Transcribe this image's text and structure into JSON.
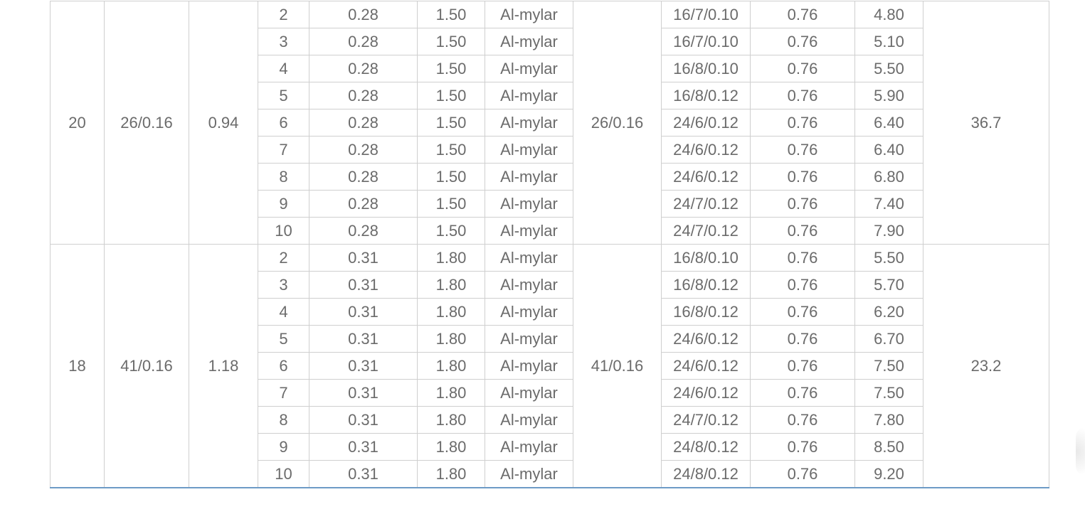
{
  "groups": [
    {
      "awg": "20",
      "conductor": "26/0.16",
      "od": "0.94",
      "drain": "26/0.16",
      "resistance": "36.7",
      "rows": [
        {
          "pairs": "2",
          "ins": "0.28",
          "dia": "1.50",
          "shield": "Al-mylar",
          "strand": "16/7/0.10",
          "jacket": "0.76",
          "outer": "4.80"
        },
        {
          "pairs": "3",
          "ins": "0.28",
          "dia": "1.50",
          "shield": "Al-mylar",
          "strand": "16/7/0.10",
          "jacket": "0.76",
          "outer": "5.10"
        },
        {
          "pairs": "4",
          "ins": "0.28",
          "dia": "1.50",
          "shield": "Al-mylar",
          "strand": "16/8/0.10",
          "jacket": "0.76",
          "outer": "5.50"
        },
        {
          "pairs": "5",
          "ins": "0.28",
          "dia": "1.50",
          "shield": "Al-mylar",
          "strand": "16/8/0.12",
          "jacket": "0.76",
          "outer": "5.90"
        },
        {
          "pairs": "6",
          "ins": "0.28",
          "dia": "1.50",
          "shield": "Al-mylar",
          "strand": "24/6/0.12",
          "jacket": "0.76",
          "outer": "6.40"
        },
        {
          "pairs": "7",
          "ins": "0.28",
          "dia": "1.50",
          "shield": "Al-mylar",
          "strand": "24/6/0.12",
          "jacket": "0.76",
          "outer": "6.40"
        },
        {
          "pairs": "8",
          "ins": "0.28",
          "dia": "1.50",
          "shield": "Al-mylar",
          "strand": "24/6/0.12",
          "jacket": "0.76",
          "outer": "6.80"
        },
        {
          "pairs": "9",
          "ins": "0.28",
          "dia": "1.50",
          "shield": "Al-mylar",
          "strand": "24/7/0.12",
          "jacket": "0.76",
          "outer": "7.40"
        },
        {
          "pairs": "10",
          "ins": "0.28",
          "dia": "1.50",
          "shield": "Al-mylar",
          "strand": "24/7/0.12",
          "jacket": "0.76",
          "outer": "7.90"
        }
      ]
    },
    {
      "awg": "18",
      "conductor": "41/0.16",
      "od": "1.18",
      "drain": "41/0.16",
      "resistance": "23.2",
      "rows": [
        {
          "pairs": "2",
          "ins": "0.31",
          "dia": "1.80",
          "shield": "Al-mylar",
          "strand": "16/8/0.10",
          "jacket": "0.76",
          "outer": "5.50"
        },
        {
          "pairs": "3",
          "ins": "0.31",
          "dia": "1.80",
          "shield": "Al-mylar",
          "strand": "16/8/0.12",
          "jacket": "0.76",
          "outer": "5.70"
        },
        {
          "pairs": "4",
          "ins": "0.31",
          "dia": "1.80",
          "shield": "Al-mylar",
          "strand": "16/8/0.12",
          "jacket": "0.76",
          "outer": "6.20"
        },
        {
          "pairs": "5",
          "ins": "0.31",
          "dia": "1.80",
          "shield": "Al-mylar",
          "strand": "24/6/0.12",
          "jacket": "0.76",
          "outer": "6.70"
        },
        {
          "pairs": "6",
          "ins": "0.31",
          "dia": "1.80",
          "shield": "Al-mylar",
          "strand": "24/6/0.12",
          "jacket": "0.76",
          "outer": "7.50"
        },
        {
          "pairs": "7",
          "ins": "0.31",
          "dia": "1.80",
          "shield": "Al-mylar",
          "strand": "24/6/0.12",
          "jacket": "0.76",
          "outer": "7.50"
        },
        {
          "pairs": "8",
          "ins": "0.31",
          "dia": "1.80",
          "shield": "Al-mylar",
          "strand": "24/7/0.12",
          "jacket": "0.76",
          "outer": "7.80"
        },
        {
          "pairs": "9",
          "ins": "0.31",
          "dia": "1.80",
          "shield": "Al-mylar",
          "strand": "24/8/0.12",
          "jacket": "0.76",
          "outer": "8.50"
        },
        {
          "pairs": "10",
          "ins": "0.31",
          "dia": "1.80",
          "shield": "Al-mylar",
          "strand": "24/8/0.12",
          "jacket": "0.76",
          "outer": "9.20"
        }
      ]
    }
  ],
  "colors": {
    "text": "#6b6b6b",
    "grid": "#cfcfcf",
    "bottom_rule": "#6d9bc6"
  }
}
